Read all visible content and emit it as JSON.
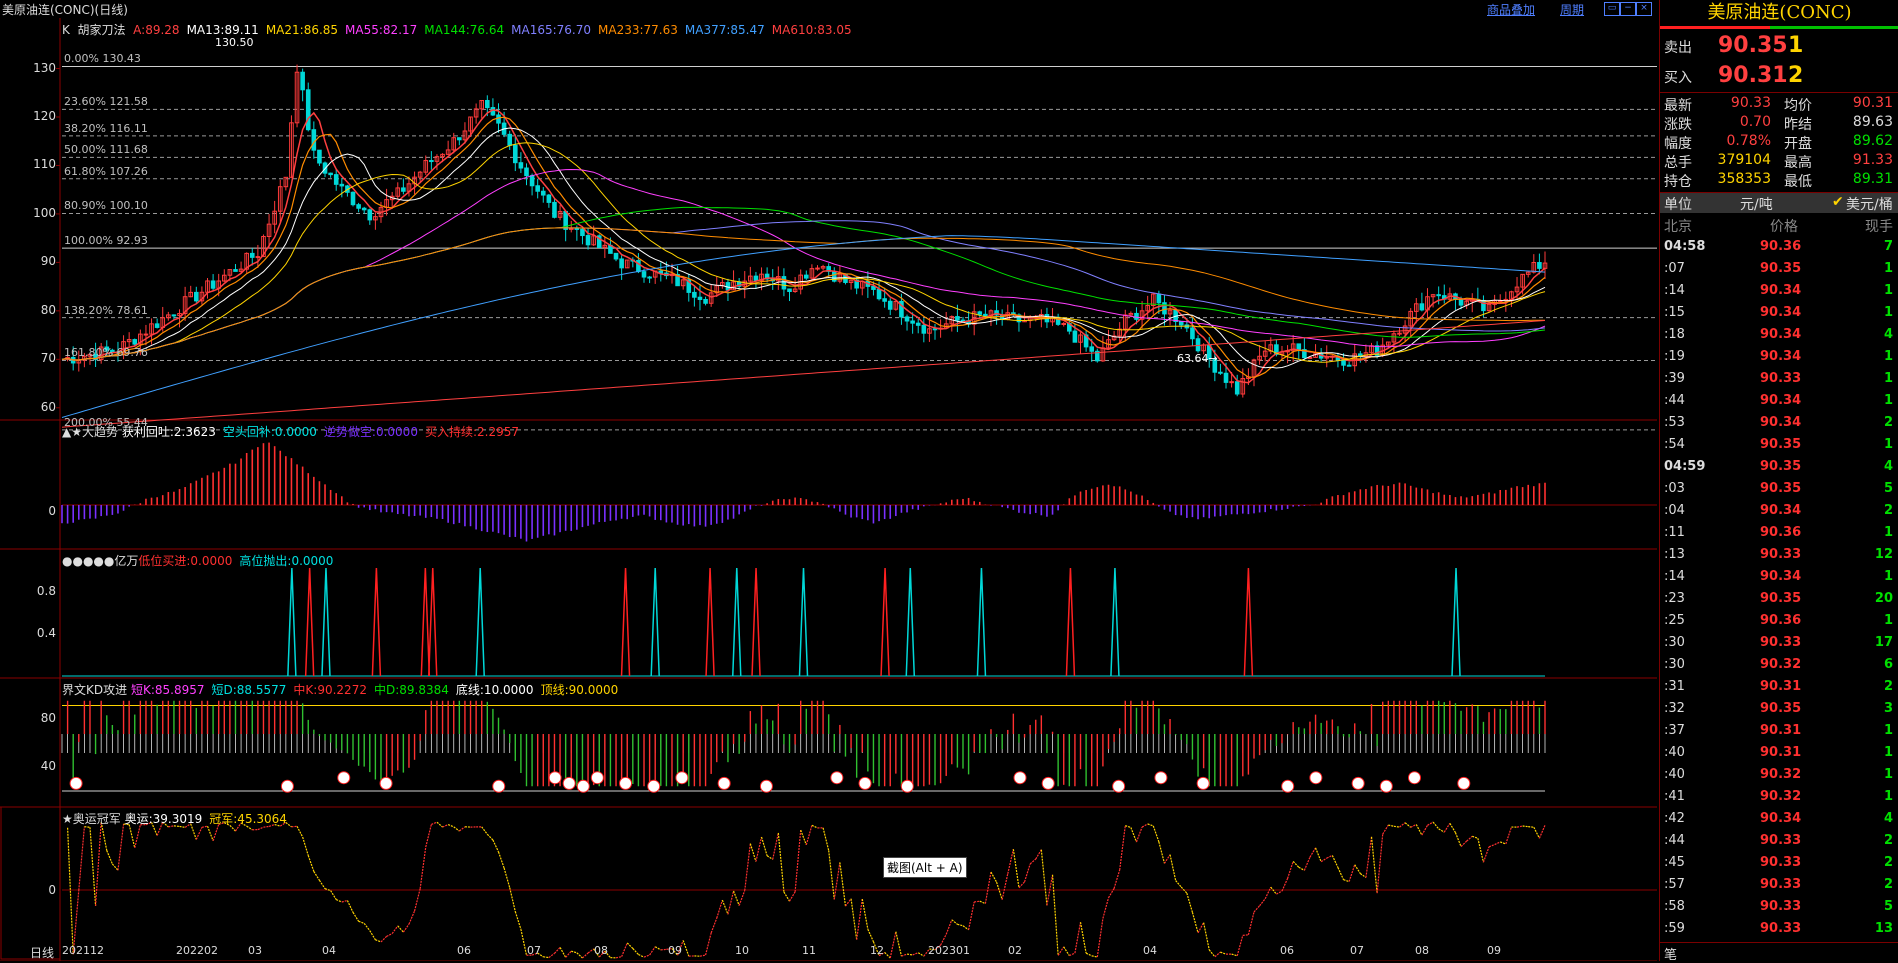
{
  "window": {
    "title": "美原油连(CONC)(日线)",
    "links": [
      "商品叠加",
      "周期"
    ],
    "win_buttons": [
      "restore-icon",
      "minimize-icon",
      "close-icon"
    ]
  },
  "main_panel": {
    "header_prefix": "K",
    "indicator_name": "胡家刀法",
    "items": [
      {
        "text": "A:89.28",
        "color": "#ff4040"
      },
      {
        "text": "MA13:89.11",
        "color": "#ffffff"
      },
      {
        "text": "MA21:86.85",
        "color": "#ffd400"
      },
      {
        "text": "MA55:82.17",
        "color": "#ff40ff"
      },
      {
        "text": "MA144:76.64",
        "color": "#00e000"
      },
      {
        "text": "MA165:76.70",
        "color": "#8080ff"
      },
      {
        "text": "MA233:77.63",
        "color": "#ff8c00"
      },
      {
        "text": "MA377:85.47",
        "color": "#40a0ff"
      },
      {
        "text": "MA610:83.05",
        "color": "#ff4040"
      }
    ],
    "y_ticks": [
      "130",
      "120",
      "110",
      "100",
      "90",
      "80",
      "70",
      "60"
    ],
    "fib_levels": [
      "0.00% 130.43",
      "23.60% 121.58",
      "38.20% 116.11",
      "50.00% 111.68",
      "61.80% 107.26",
      "80.90% 100.10",
      "100.00% 92.93",
      "138.20% 78.61",
      "161.80% 69.76",
      "200.00% 55.44"
    ],
    "high_label": "130.50",
    "low_label": "63.64"
  },
  "macd_panel": {
    "title": "▲★大趋势",
    "items": [
      {
        "text": "获利回吐:2.3623",
        "color": "#ffffff"
      },
      {
        "text": "空头回补:0.0000",
        "color": "#00e0e0"
      },
      {
        "text": "逆势做空:0.0000",
        "color": "#7a30ff"
      },
      {
        "text": "买入持续:2.2957",
        "color": "#ff3030"
      }
    ],
    "y_ticks": [
      "0"
    ]
  },
  "yiwan_panel": {
    "title": "●●●●●亿万",
    "items": [
      {
        "text": "低位买进:0.0000",
        "color": "#ff3030"
      },
      {
        "text": "高位抛出:0.0000",
        "color": "#00e0e0"
      }
    ],
    "y_ticks": [
      "0.8",
      "0.4"
    ]
  },
  "kd_panel": {
    "title": "界文KD攻进",
    "items": [
      {
        "text": "短K:85.8957",
        "color": "#ff40ff"
      },
      {
        "text": "短D:88.5577",
        "color": "#00e0e0"
      },
      {
        "text": "中K:90.2272",
        "color": "#ff3030"
      },
      {
        "text": "中D:89.8384",
        "color": "#00e000"
      },
      {
        "text": "底线:10.0000",
        "color": "#ffffff"
      },
      {
        "text": "顶线:90.0000",
        "color": "#ffd400"
      }
    ],
    "y_ticks": [
      "80",
      "40"
    ]
  },
  "olympic_panel": {
    "title": "★奥运冠军",
    "items": [
      {
        "text": "奥运:39.3019",
        "color": "#ffffff"
      },
      {
        "text": "冠军:45.3064",
        "color": "#ffd400"
      }
    ],
    "y_ticks": [
      "0"
    ]
  },
  "x_axis": {
    "period_label": "日线",
    "labels": [
      "202112",
      "202202",
      "03",
      "04",
      "06",
      "07",
      "08",
      "09",
      "10",
      "11",
      "12",
      "202301",
      "02",
      "04",
      "06",
      "07",
      "08",
      "09"
    ]
  },
  "tooltip": "截图(Alt + A)",
  "quote": {
    "title": "美原油连(CONC)",
    "sell_label": "卖出",
    "sell_price": "90.35",
    "sell_vol": "1",
    "buy_label": "买入",
    "buy_price": "90.31",
    "buy_vol": "2",
    "stats": [
      {
        "k": "最新",
        "v": "90.33",
        "k2": "均价",
        "v2": "90.31",
        "c1": "#ff4040",
        "c2": "#ff4040"
      },
      {
        "k": "涨跌",
        "v": "0.70",
        "k2": "昨结",
        "v2": "89.63",
        "c1": "#ff4040",
        "c2": "#dddddd"
      },
      {
        "k": "幅度",
        "v": "0.78%",
        "k2": "开盘",
        "v2": "89.62",
        "c1": "#ff4040",
        "c2": "#00e000"
      },
      {
        "k": "总手",
        "v": "379104",
        "k2": "最高",
        "v2": "91.33",
        "c1": "#ffd400",
        "c2": "#ff4040"
      },
      {
        "k": "持仓",
        "v": "358353",
        "k2": "最低",
        "v2": "89.31",
        "c1": "#ffd400",
        "c2": "#00e000"
      }
    ],
    "unit_label": "单位",
    "unit_value": "元/吨",
    "unit_option": "美元/桶",
    "table_headers": [
      "北京",
      "价格",
      "现手"
    ],
    "ticks": [
      {
        "t": "04:58",
        "p": "90.36",
        "v": "7"
      },
      {
        "t": ":07",
        "p": "90.35",
        "v": "1"
      },
      {
        "t": ":14",
        "p": "90.34",
        "v": "1"
      },
      {
        "t": ":15",
        "p": "90.34",
        "v": "1"
      },
      {
        "t": ":18",
        "p": "90.34",
        "v": "4"
      },
      {
        "t": ":19",
        "p": "90.34",
        "v": "1"
      },
      {
        "t": ":39",
        "p": "90.33",
        "v": "1"
      },
      {
        "t": ":44",
        "p": "90.34",
        "v": "1"
      },
      {
        "t": ":53",
        "p": "90.34",
        "v": "2"
      },
      {
        "t": ":54",
        "p": "90.35",
        "v": "1"
      },
      {
        "t": "04:59",
        "p": "90.35",
        "v": "4"
      },
      {
        "t": ":03",
        "p": "90.35",
        "v": "5"
      },
      {
        "t": ":04",
        "p": "90.34",
        "v": "2"
      },
      {
        "t": ":11",
        "p": "90.36",
        "v": "1"
      },
      {
        "t": ":13",
        "p": "90.33",
        "v": "12"
      },
      {
        "t": ":14",
        "p": "90.34",
        "v": "1"
      },
      {
        "t": ":23",
        "p": "90.35",
        "v": "20"
      },
      {
        "t": ":25",
        "p": "90.36",
        "v": "1"
      },
      {
        "t": ":30",
        "p": "90.33",
        "v": "17"
      },
      {
        "t": ":30",
        "p": "90.32",
        "v": "6"
      },
      {
        "t": ":31",
        "p": "90.31",
        "v": "2"
      },
      {
        "t": ":32",
        "p": "90.35",
        "v": "3"
      },
      {
        "t": ":37",
        "p": "90.31",
        "v": "1"
      },
      {
        "t": ":40",
        "p": "90.31",
        "v": "1"
      },
      {
        "t": ":40",
        "p": "90.32",
        "v": "1"
      },
      {
        "t": ":41",
        "p": "90.32",
        "v": "1"
      },
      {
        "t": ":42",
        "p": "90.34",
        "v": "4"
      },
      {
        "t": ":44",
        "p": "90.33",
        "v": "2"
      },
      {
        "t": ":45",
        "p": "90.33",
        "v": "2"
      },
      {
        "t": ":57",
        "p": "90.33",
        "v": "2"
      },
      {
        "t": ":58",
        "p": "90.33",
        "v": "5"
      },
      {
        "t": ":59",
        "p": "90.33",
        "v": "13"
      }
    ],
    "bottom_label": "笔"
  },
  "chart_data": {
    "type": "candlestick",
    "price_axis": {
      "ylim": [
        55,
        133
      ],
      "ticks": [
        130,
        120,
        110,
        100,
        90,
        80,
        70,
        60
      ]
    },
    "price_path": [
      [
        0,
        70
      ],
      [
        10,
        72
      ],
      [
        20,
        80
      ],
      [
        30,
        88
      ],
      [
        35,
        92
      ],
      [
        40,
        108
      ],
      [
        42,
        130.5
      ],
      [
        45,
        112
      ],
      [
        50,
        105
      ],
      [
        55,
        100
      ],
      [
        60,
        104
      ],
      [
        65,
        110
      ],
      [
        70,
        115
      ],
      [
        75,
        122
      ],
      [
        78,
        118
      ],
      [
        82,
        110
      ],
      [
        88,
        100
      ],
      [
        95,
        94
      ],
      [
        100,
        90
      ],
      [
        105,
        88
      ],
      [
        110,
        86
      ],
      [
        115,
        83
      ],
      [
        120,
        86
      ],
      [
        125,
        88
      ],
      [
        130,
        85
      ],
      [
        135,
        90
      ],
      [
        140,
        86
      ],
      [
        145,
        84
      ],
      [
        150,
        80
      ],
      [
        155,
        76
      ],
      [
        160,
        78
      ],
      [
        165,
        79
      ],
      [
        170,
        78
      ],
      [
        175,
        78
      ],
      [
        180,
        76
      ],
      [
        185,
        70
      ],
      [
        190,
        78
      ],
      [
        195,
        82
      ],
      [
        200,
        78
      ],
      [
        205,
        70
      ],
      [
        210,
        63.64
      ],
      [
        215,
        72
      ],
      [
        220,
        72
      ],
      [
        225,
        71
      ],
      [
        230,
        70
      ],
      [
        235,
        72
      ],
      [
        240,
        78
      ],
      [
        245,
        84
      ],
      [
        250,
        82
      ],
      [
        255,
        80
      ],
      [
        260,
        86
      ],
      [
        265,
        90.3
      ]
    ],
    "macd_values": [
      -5,
      -4,
      -2,
      2,
      4,
      8,
      12,
      18,
      12,
      6,
      0,
      -2,
      -3,
      -4,
      -6,
      -8,
      -10,
      -8,
      -6,
      -4,
      -3,
      -5,
      -6,
      -4,
      0,
      2,
      1,
      -3,
      -5,
      -2,
      0,
      2,
      0,
      -2,
      -3,
      4,
      6,
      3,
      -2,
      -4,
      -3,
      -2,
      -1,
      0,
      3,
      5,
      6,
      4,
      2,
      3,
      5,
      6
    ],
    "yiwan_spikes": [
      {
        "x": 0.155,
        "color": "cyan"
      },
      {
        "x": 0.167,
        "color": "red"
      },
      {
        "x": 0.178,
        "color": "cyan"
      },
      {
        "x": 0.212,
        "color": "red"
      },
      {
        "x": 0.245,
        "color": "red"
      },
      {
        "x": 0.25,
        "color": "red"
      },
      {
        "x": 0.282,
        "color": "cyan"
      },
      {
        "x": 0.38,
        "color": "red"
      },
      {
        "x": 0.4,
        "color": "cyan"
      },
      {
        "x": 0.437,
        "color": "red"
      },
      {
        "x": 0.455,
        "color": "cyan"
      },
      {
        "x": 0.468,
        "color": "red"
      },
      {
        "x": 0.5,
        "color": "cyan"
      },
      {
        "x": 0.555,
        "color": "red"
      },
      {
        "x": 0.572,
        "color": "cyan"
      },
      {
        "x": 0.62,
        "color": "cyan"
      },
      {
        "x": 0.68,
        "color": "red"
      },
      {
        "x": 0.71,
        "color": "cyan"
      },
      {
        "x": 0.8,
        "color": "red"
      },
      {
        "x": 0.94,
        "color": "cyan"
      }
    ]
  }
}
